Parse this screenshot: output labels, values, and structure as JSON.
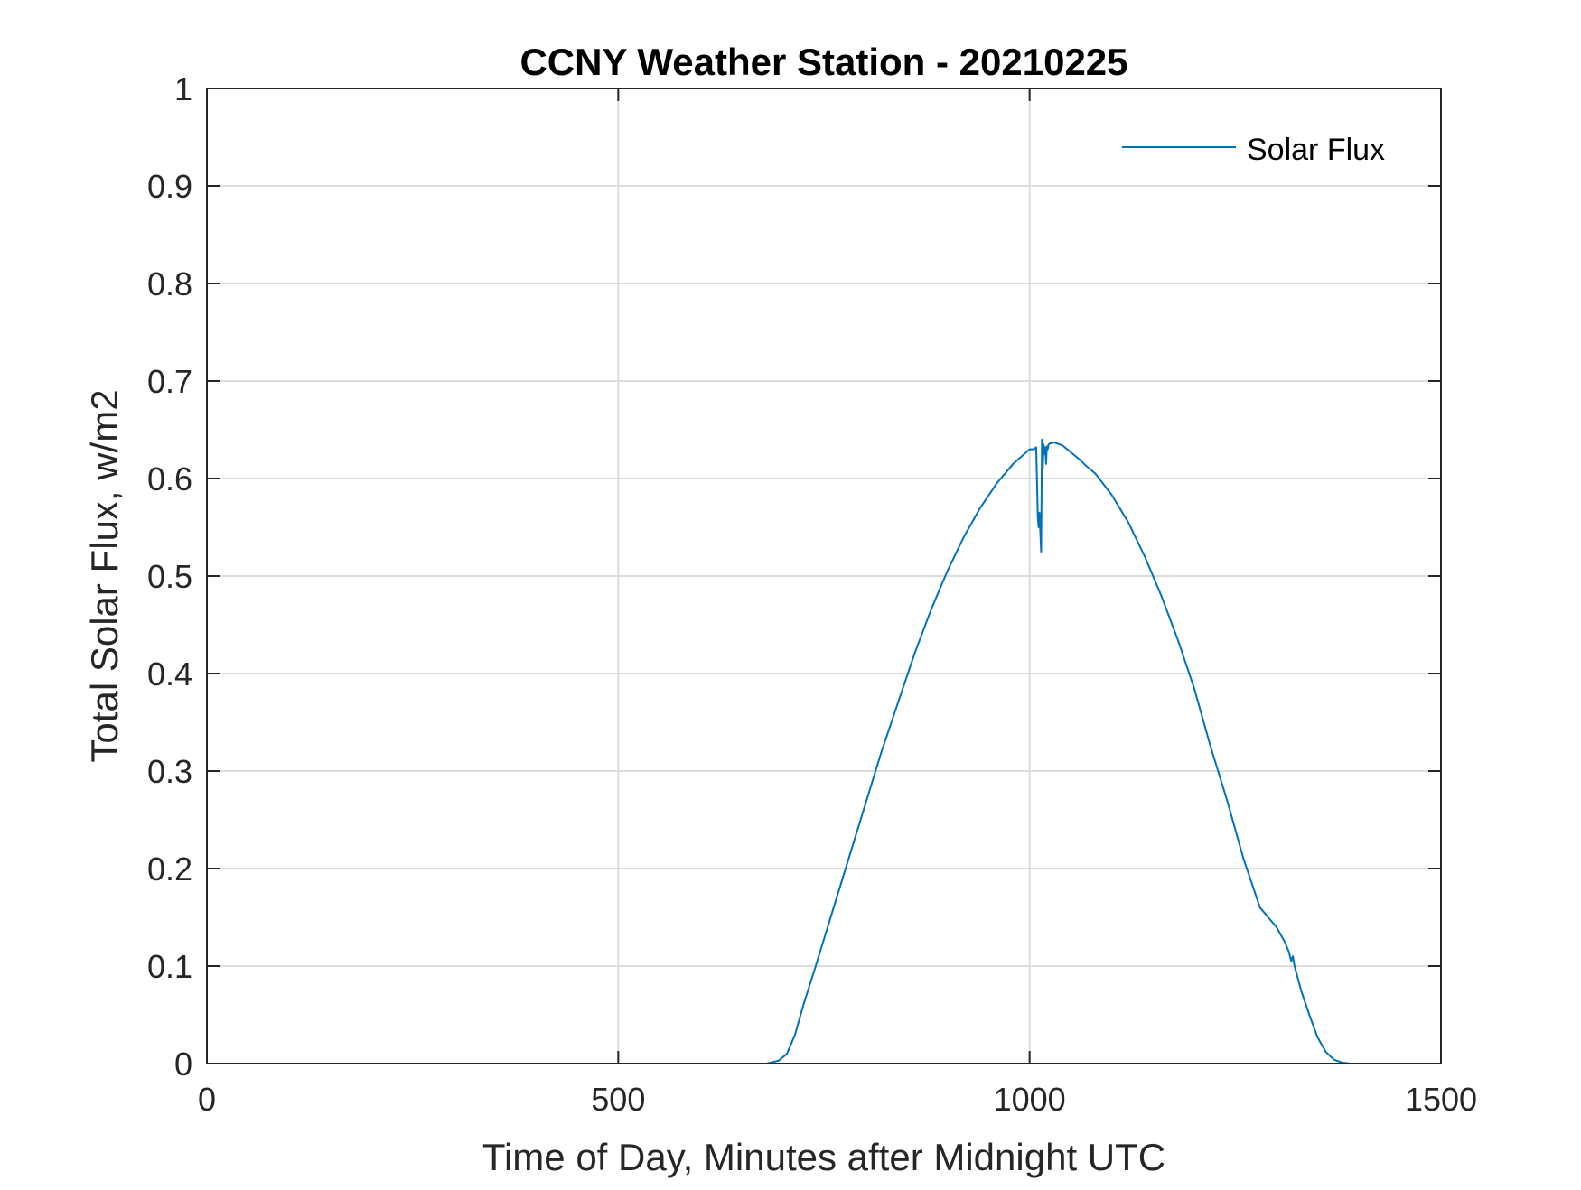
{
  "chart_data": {
    "type": "line",
    "title": "CCNY Weather Station - 20210225",
    "xlabel": "Time of Day, Minutes after Midnight UTC",
    "ylabel": "Total Solar Flux, w/m2",
    "xlim": [
      0,
      1500
    ],
    "ylim": [
      0,
      1
    ],
    "xticks": [
      0,
      500,
      1000,
      1500
    ],
    "xtick_labels": [
      "0",
      "500",
      "1000",
      "1500"
    ],
    "yticks": [
      0,
      0.1,
      0.2,
      0.3,
      0.4,
      0.5,
      0.6,
      0.7,
      0.8,
      0.9,
      1
    ],
    "ytick_labels": [
      "0",
      "0.1",
      "0.2",
      "0.3",
      "0.4",
      "0.5",
      "0.6",
      "0.7",
      "0.8",
      "0.9",
      "1"
    ],
    "grid": true,
    "legend_position": "top-right",
    "series": [
      {
        "name": "Solar Flux",
        "color": "#0072BD",
        "x": [
          0,
          100,
          200,
          300,
          400,
          500,
          600,
          680,
          695,
          705,
          715,
          725,
          740,
          760,
          780,
          800,
          820,
          840,
          860,
          880,
          900,
          920,
          940,
          960,
          980,
          1000,
          1005,
          1008,
          1010,
          1011,
          1012,
          1013,
          1014,
          1015,
          1016,
          1017,
          1018,
          1019,
          1020,
          1021,
          1022,
          1023,
          1025,
          1030,
          1040,
          1050,
          1060,
          1070,
          1080,
          1100,
          1120,
          1140,
          1160,
          1180,
          1200,
          1220,
          1240,
          1260,
          1280,
          1300,
          1310,
          1315,
          1318,
          1320,
          1322,
          1330,
          1340,
          1350,
          1360,
          1370,
          1380,
          1390,
          1400,
          1420,
          1450
        ],
        "y": [
          0,
          0,
          0,
          0,
          0,
          0,
          0,
          0,
          0.003,
          0.01,
          0.03,
          0.06,
          0.1,
          0.155,
          0.21,
          0.265,
          0.32,
          0.37,
          0.42,
          0.465,
          0.505,
          0.54,
          0.57,
          0.595,
          0.615,
          0.63,
          0.63,
          0.632,
          0.56,
          0.55,
          0.565,
          0.545,
          0.525,
          0.64,
          0.61,
          0.635,
          0.625,
          0.632,
          0.615,
          0.633,
          0.63,
          0.635,
          0.636,
          0.637,
          0.634,
          0.627,
          0.62,
          0.612,
          0.605,
          0.583,
          0.555,
          0.52,
          0.48,
          0.435,
          0.385,
          0.325,
          0.27,
          0.21,
          0.16,
          0.14,
          0.125,
          0.115,
          0.105,
          0.11,
          0.1,
          0.075,
          0.05,
          0.027,
          0.012,
          0.004,
          0.001,
          0,
          0,
          0,
          0
        ]
      }
    ]
  }
}
